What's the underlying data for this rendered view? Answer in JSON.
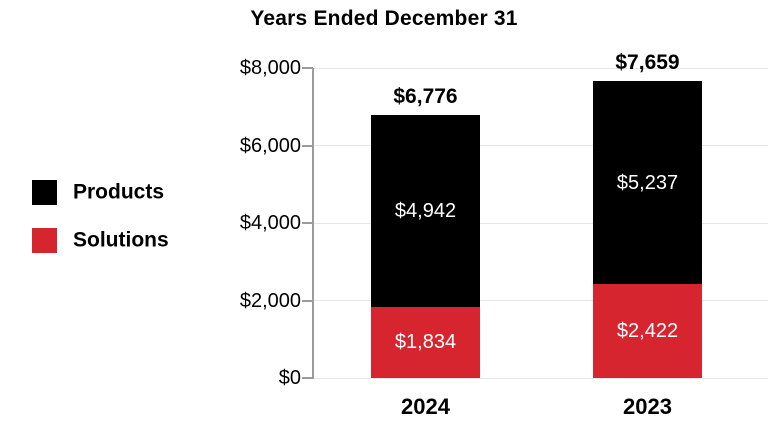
{
  "title": "Years Ended December 31",
  "legend": {
    "items": [
      {
        "label": "Products",
        "color": "#000000"
      },
      {
        "label": "Solutions",
        "color": "#d7252f"
      }
    ]
  },
  "colors": {
    "accent_red": "#d7252f",
    "bar_black": "#000000",
    "gridline": "#e7e7e7",
    "axis": "#9b9b9b",
    "segment_label_text": "#ffffff",
    "text": "#000000"
  },
  "chart_data": {
    "type": "bar",
    "stacked": true,
    "title": "Years Ended December 31",
    "categories": [
      "2024",
      "2023"
    ],
    "series": [
      {
        "name": "Solutions",
        "color": "#d7252f",
        "values": [
          1834,
          2422
        ],
        "value_labels": [
          "$1,834",
          "$2,422"
        ]
      },
      {
        "name": "Products",
        "color": "#000000",
        "values": [
          4942,
          5237
        ],
        "value_labels": [
          "$4,942",
          "$5,237"
        ]
      }
    ],
    "totals": [
      6776,
      7659
    ],
    "total_labels": [
      "$6,776",
      "$7,659"
    ],
    "xlabel": "",
    "ylabel": "",
    "ylim": [
      0,
      8000
    ],
    "y_tick_values": [
      0,
      2000,
      4000,
      6000,
      8000
    ],
    "y_tick_labels": [
      "$0",
      "$2,000",
      "$4,000",
      "$6,000",
      "$8,000"
    ],
    "grid": true,
    "legend_position": "left"
  }
}
